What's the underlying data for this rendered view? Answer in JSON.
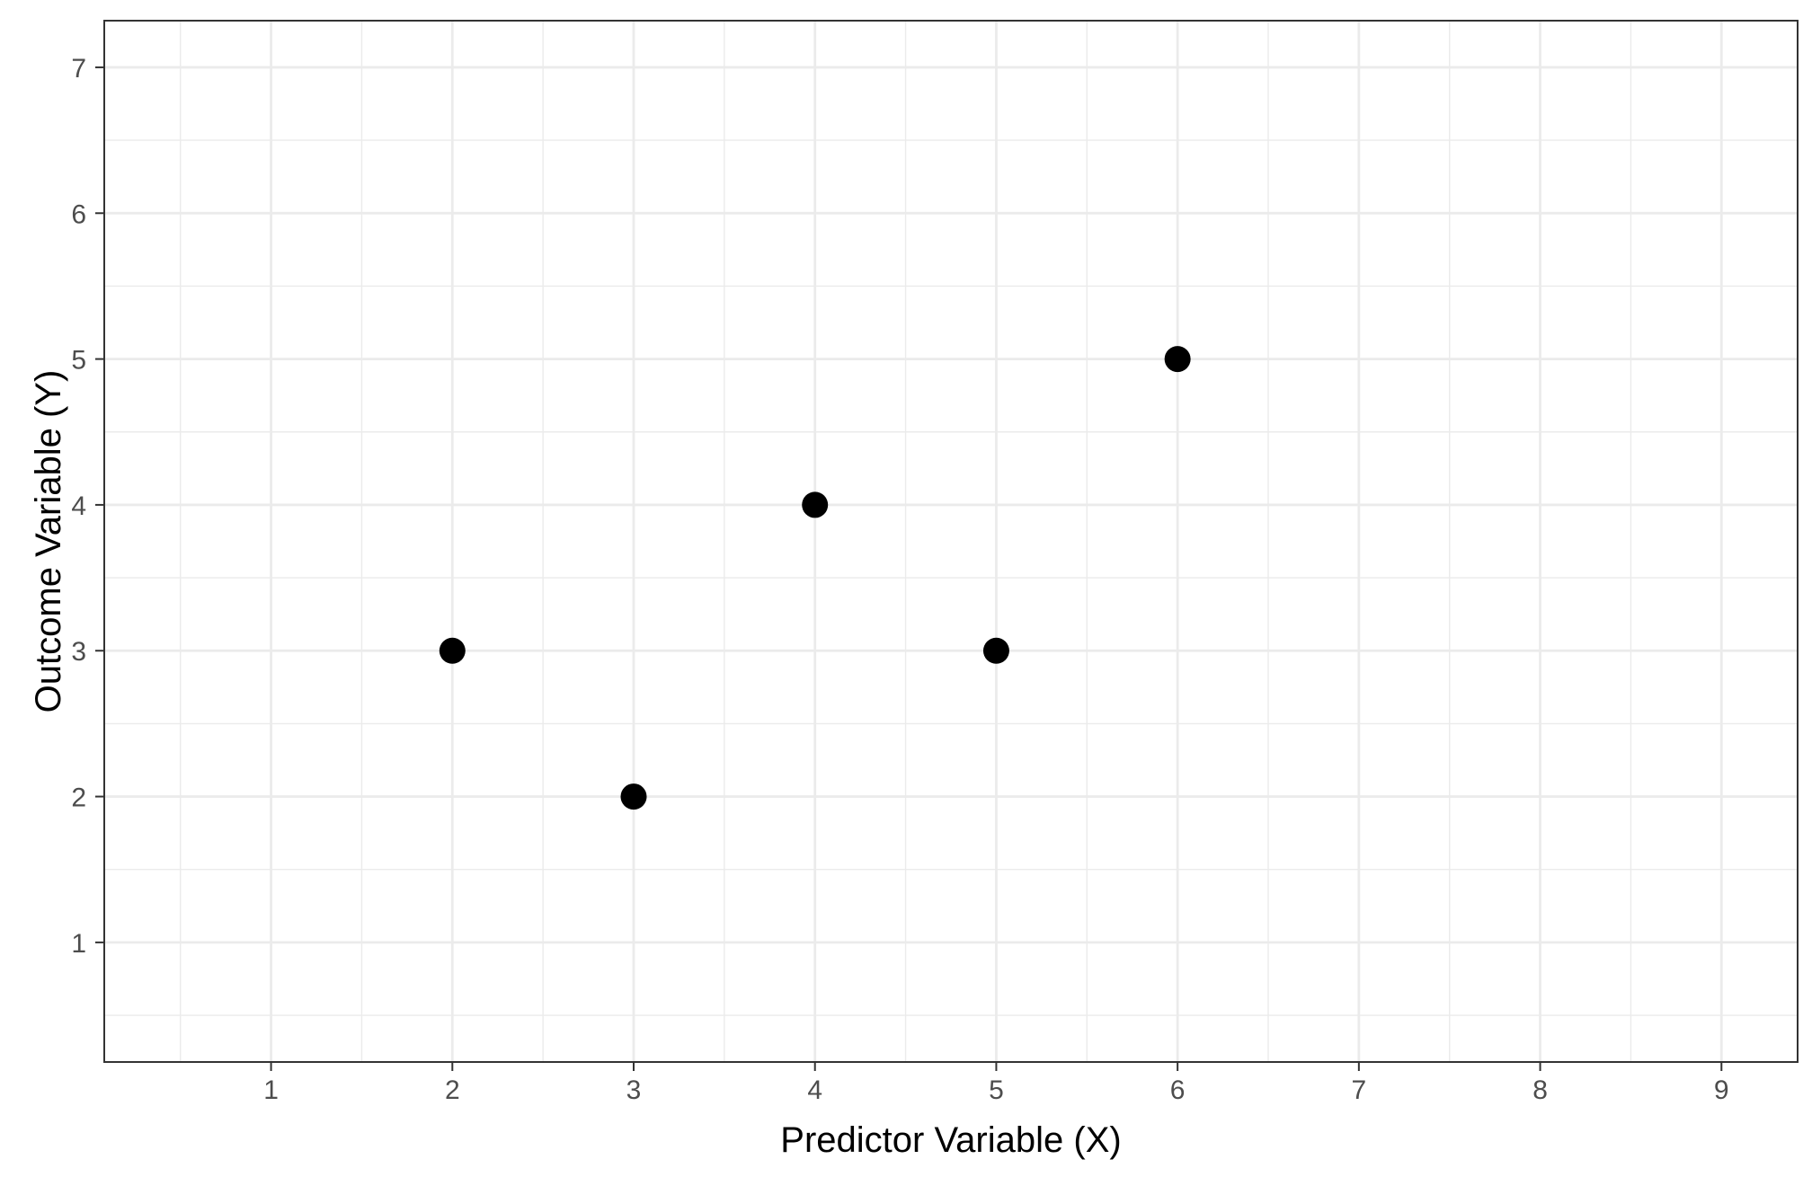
{
  "chart_data": {
    "type": "scatter",
    "title": "",
    "xlabel": "Predictor Variable (X)",
    "ylabel": "Outcome Variable (Y)",
    "xlim": [
      0.08,
      9.42
    ],
    "ylim": [
      0.18,
      7.32
    ],
    "x_ticks": [
      1,
      2,
      3,
      4,
      5,
      6,
      7,
      8,
      9
    ],
    "y_ticks": [
      1,
      2,
      3,
      4,
      5,
      6,
      7
    ],
    "x_tick_labels": [
      "1",
      "2",
      "3",
      "4",
      "5",
      "6",
      "7",
      "8",
      "9"
    ],
    "y_tick_labels": [
      "1",
      "2",
      "3",
      "4",
      "5",
      "6",
      "7"
    ],
    "grid": true,
    "theme": "black-and-white",
    "series": [
      {
        "color": "#000000",
        "points": [
          {
            "x": 2,
            "y": 3
          },
          {
            "x": 3,
            "y": 2
          },
          {
            "x": 4,
            "y": 4
          },
          {
            "x": 5,
            "y": 3
          },
          {
            "x": 6,
            "y": 5
          }
        ]
      }
    ]
  }
}
